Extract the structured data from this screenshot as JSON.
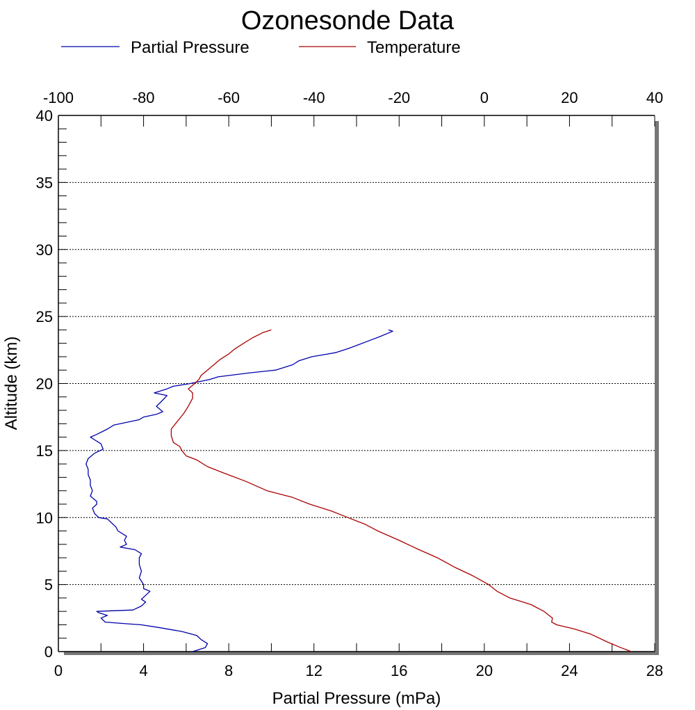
{
  "chart_data": {
    "type": "line",
    "title": "Ozonesonde Data",
    "xlabel": "Partial Pressure (mPa)",
    "ylabel": "Altitude (km)",
    "x_bottom_range": [
      0,
      28
    ],
    "x_bottom_ticks": [
      "0",
      "4",
      "8",
      "12",
      "16",
      "20",
      "24",
      "28"
    ],
    "x_top_range": [
      -100,
      40
    ],
    "x_top_ticks": [
      "-100",
      "-80",
      "-60",
      "-40",
      "-20",
      "0",
      "20",
      "40"
    ],
    "ylim": [
      0,
      40
    ],
    "y_ticks": [
      "0",
      "5",
      "10",
      "15",
      "20",
      "25",
      "30",
      "35",
      "40"
    ],
    "grid": "horizontal dotted",
    "legend_position": "top",
    "series": [
      {
        "name": "Partial Pressure",
        "axis": "bottom",
        "color": "#0000aa",
        "points": [
          [
            6.3,
            0.0
          ],
          [
            6.9,
            0.3
          ],
          [
            7.0,
            0.6
          ],
          [
            6.7,
            0.9
          ],
          [
            6.5,
            1.2
          ],
          [
            5.8,
            1.5
          ],
          [
            4.7,
            1.8
          ],
          [
            3.9,
            2.0
          ],
          [
            3.0,
            2.1
          ],
          [
            2.2,
            2.2
          ],
          [
            2.0,
            2.5
          ],
          [
            2.3,
            2.7
          ],
          [
            1.9,
            2.9
          ],
          [
            1.8,
            3.0
          ],
          [
            3.5,
            3.1
          ],
          [
            3.9,
            3.4
          ],
          [
            4.1,
            3.7
          ],
          [
            3.9,
            3.9
          ],
          [
            4.3,
            4.5
          ],
          [
            4.0,
            4.7
          ],
          [
            4.0,
            5.0
          ],
          [
            3.8,
            5.5
          ],
          [
            3.9,
            6.0
          ],
          [
            3.8,
            6.5
          ],
          [
            3.8,
            7.0
          ],
          [
            3.9,
            7.3
          ],
          [
            3.6,
            7.6
          ],
          [
            2.9,
            7.8
          ],
          [
            3.2,
            8.0
          ],
          [
            3.1,
            8.3
          ],
          [
            3.2,
            8.6
          ],
          [
            2.8,
            9.0
          ],
          [
            2.7,
            9.3
          ],
          [
            2.5,
            9.6
          ],
          [
            2.3,
            9.9
          ],
          [
            1.9,
            10.0
          ],
          [
            1.7,
            10.3
          ],
          [
            1.6,
            10.7
          ],
          [
            1.8,
            11.0
          ],
          [
            1.8,
            11.2
          ],
          [
            1.5,
            11.6
          ],
          [
            1.6,
            12.0
          ],
          [
            1.5,
            12.4
          ],
          [
            1.5,
            12.8
          ],
          [
            1.4,
            13.2
          ],
          [
            1.4,
            13.6
          ],
          [
            1.3,
            14.0
          ],
          [
            1.4,
            14.4
          ],
          [
            1.7,
            14.8
          ],
          [
            2.1,
            15.1
          ],
          [
            2.0,
            15.5
          ],
          [
            1.7,
            15.8
          ],
          [
            1.5,
            16.0
          ],
          [
            1.8,
            16.2
          ],
          [
            2.3,
            16.6
          ],
          [
            2.6,
            16.9
          ],
          [
            3.2,
            17.1
          ],
          [
            3.8,
            17.3
          ],
          [
            4.0,
            17.5
          ],
          [
            4.6,
            17.7
          ],
          [
            4.9,
            17.9
          ],
          [
            4.6,
            18.3
          ],
          [
            4.8,
            18.6
          ],
          [
            5.1,
            19.1
          ],
          [
            4.5,
            19.3
          ],
          [
            5.1,
            19.6
          ],
          [
            5.4,
            19.8
          ],
          [
            6.2,
            20.0
          ],
          [
            7.1,
            20.3
          ],
          [
            7.5,
            20.5
          ],
          [
            9.0,
            20.8
          ],
          [
            10.2,
            21.0
          ],
          [
            11.0,
            21.4
          ],
          [
            11.3,
            21.7
          ],
          [
            11.9,
            22.0
          ],
          [
            13.0,
            22.3
          ],
          [
            13.6,
            22.6
          ],
          [
            14.1,
            22.9
          ],
          [
            14.6,
            23.2
          ],
          [
            15.1,
            23.5
          ],
          [
            15.7,
            23.9
          ],
          [
            15.5,
            24.0
          ]
        ]
      },
      {
        "name": "Temperature",
        "axis": "top",
        "color": "#aa0000",
        "points": [
          [
            34.5,
            0.0
          ],
          [
            32.0,
            0.3
          ],
          [
            29.0,
            0.7
          ],
          [
            25.0,
            1.3
          ],
          [
            21.0,
            1.7
          ],
          [
            17.0,
            2.0
          ],
          [
            15.8,
            2.2
          ],
          [
            16.0,
            2.5
          ],
          [
            14.0,
            3.0
          ],
          [
            11.0,
            3.5
          ],
          [
            6.0,
            4.0
          ],
          [
            3.0,
            4.5
          ],
          [
            1.0,
            5.0
          ],
          [
            -3.0,
            5.7
          ],
          [
            -7.0,
            6.3
          ],
          [
            -11.0,
            7.0
          ],
          [
            -16.0,
            7.7
          ],
          [
            -20.0,
            8.3
          ],
          [
            -25.0,
            9.0
          ],
          [
            -28.0,
            9.5
          ],
          [
            -32.0,
            10.0
          ],
          [
            -36.0,
            10.5
          ],
          [
            -41.0,
            11.0
          ],
          [
            -45.0,
            11.5
          ],
          [
            -51.0,
            12.0
          ],
          [
            -56.0,
            12.7
          ],
          [
            -61.0,
            13.3
          ],
          [
            -65.0,
            13.8
          ],
          [
            -67.5,
            14.3
          ],
          [
            -70.0,
            14.6
          ],
          [
            -71.0,
            15.0
          ],
          [
            -71.5,
            15.3
          ],
          [
            -73.0,
            15.6
          ],
          [
            -73.5,
            16.1
          ],
          [
            -73.5,
            16.6
          ],
          [
            -72.5,
            17.0
          ],
          [
            -71.5,
            17.4
          ],
          [
            -70.5,
            17.8
          ],
          [
            -69.5,
            18.3
          ],
          [
            -68.5,
            18.9
          ],
          [
            -68.5,
            19.3
          ],
          [
            -69.5,
            19.6
          ],
          [
            -68.0,
            20.0
          ],
          [
            -67.0,
            20.3
          ],
          [
            -66.5,
            20.6
          ],
          [
            -65.0,
            21.0
          ],
          [
            -63.5,
            21.4
          ],
          [
            -62.0,
            21.8
          ],
          [
            -60.0,
            22.2
          ],
          [
            -58.5,
            22.6
          ],
          [
            -56.5,
            23.0
          ],
          [
            -54.5,
            23.4
          ],
          [
            -52.0,
            23.8
          ],
          [
            -50.0,
            24.0
          ]
        ]
      }
    ]
  }
}
